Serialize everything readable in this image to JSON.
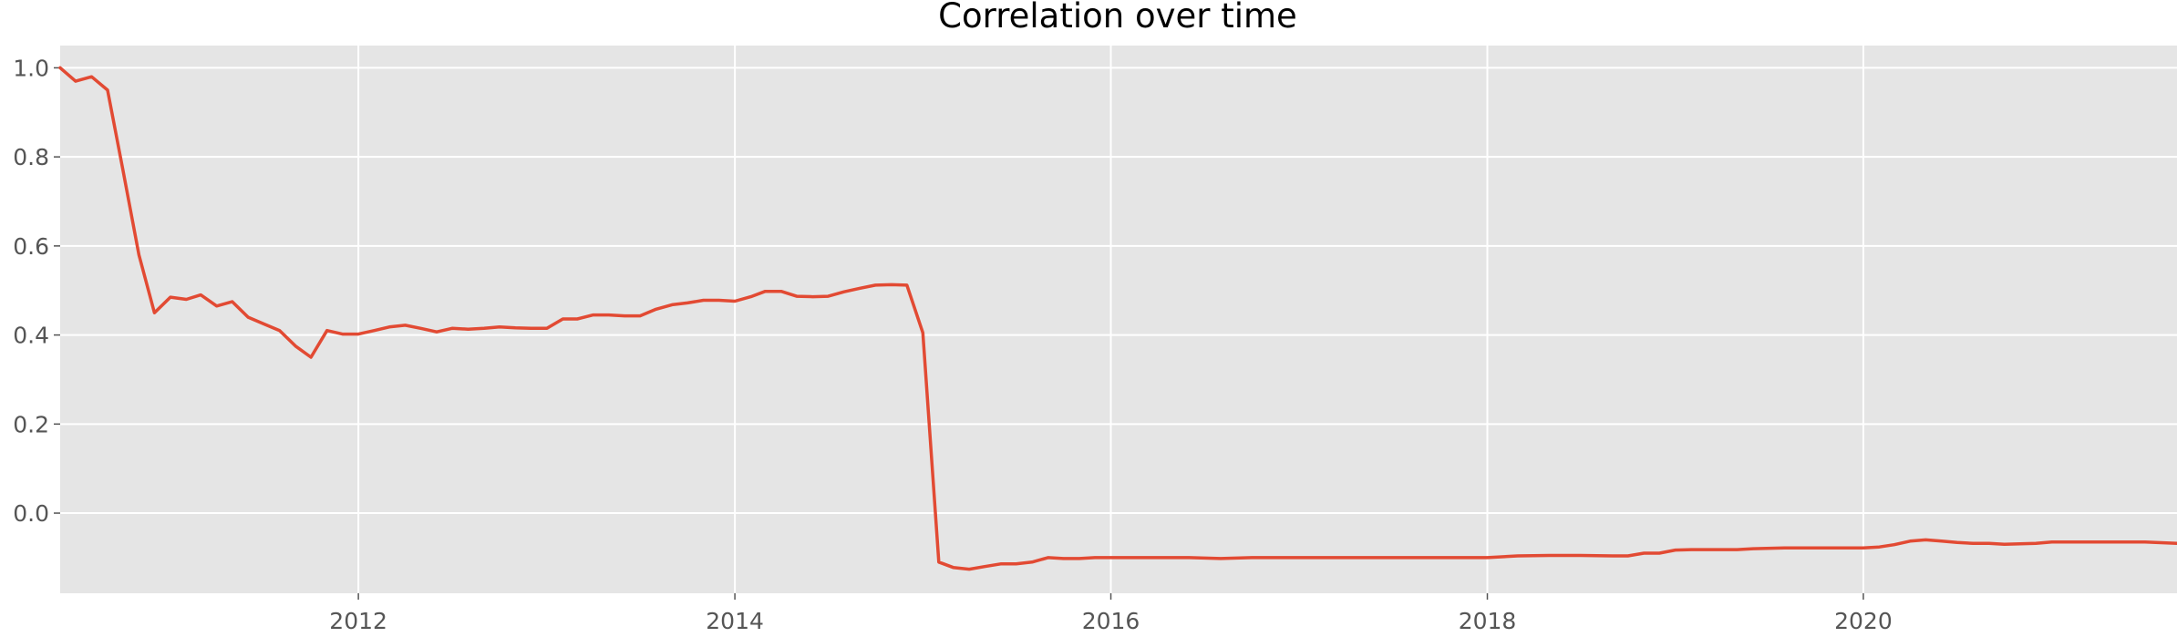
{
  "chart_data": {
    "type": "line",
    "title": "Correlation over time",
    "xlabel": "",
    "ylabel": "",
    "xlim": [
      "2010-06-01",
      "2021-09-01"
    ],
    "ylim": [
      -0.18,
      1.05
    ],
    "xticks": [
      "2012",
      "2014",
      "2016",
      "2018",
      "2020"
    ],
    "yticks": [
      "0.0",
      "0.2",
      "0.4",
      "0.6",
      "0.8",
      "1.0"
    ],
    "grid": true,
    "legend": "none",
    "colors": {
      "line": "#e24a33",
      "plot_background": "#e5e5e5",
      "grid": "#ffffff"
    },
    "series": [
      {
        "dates": [
          "2010-06-01",
          "2010-07-01",
          "2010-08-01",
          "2010-09-01",
          "2010-10-01",
          "2010-11-01",
          "2010-12-01",
          "2011-01-01",
          "2011-02-01",
          "2011-03-01",
          "2011-04-01",
          "2011-05-01",
          "2011-06-01",
          "2011-07-01",
          "2011-08-01",
          "2011-09-01",
          "2011-10-01",
          "2011-11-01",
          "2011-12-01",
          "2012-01-01",
          "2012-02-01",
          "2012-03-01",
          "2012-04-01",
          "2012-05-01",
          "2012-06-01",
          "2012-07-01",
          "2012-08-01",
          "2012-09-01",
          "2012-10-01",
          "2012-11-01",
          "2012-12-01",
          "2013-01-01",
          "2013-02-01",
          "2013-03-01",
          "2013-04-01",
          "2013-05-01",
          "2013-06-01",
          "2013-07-01",
          "2013-08-01",
          "2013-09-01",
          "2013-10-01",
          "2013-11-01",
          "2013-12-01",
          "2014-01-01",
          "2014-02-01",
          "2014-03-01",
          "2014-04-01",
          "2014-05-01",
          "2014-06-01",
          "2014-07-01",
          "2014-08-01",
          "2014-09-01",
          "2014-10-01",
          "2014-11-01",
          "2014-12-01",
          "2015-01-01",
          "2015-02-01",
          "2015-03-01",
          "2015-04-01",
          "2015-05-01",
          "2015-06-01",
          "2015-07-01",
          "2015-08-01",
          "2015-09-01",
          "2015-10-01",
          "2015-11-01",
          "2015-12-01",
          "2016-02-01",
          "2016-04-01",
          "2016-06-01",
          "2016-08-01",
          "2016-10-01",
          "2016-12-01",
          "2017-02-01",
          "2017-04-01",
          "2017-06-01",
          "2017-08-01",
          "2017-10-01",
          "2017-12-01",
          "2018-01-01",
          "2018-03-01",
          "2018-05-01",
          "2018-07-01",
          "2018-09-01",
          "2018-10-01",
          "2018-11-01",
          "2018-12-01",
          "2019-01-01",
          "2019-02-01",
          "2019-04-01",
          "2019-05-01",
          "2019-06-01",
          "2019-08-01",
          "2019-10-01",
          "2019-12-01",
          "2020-01-01",
          "2020-02-01",
          "2020-03-01",
          "2020-04-01",
          "2020-05-01",
          "2020-06-01",
          "2020-07-01",
          "2020-08-01",
          "2020-09-01",
          "2020-10-01",
          "2020-12-01",
          "2021-01-01",
          "2021-03-01",
          "2021-05-01",
          "2021-07-01",
          "2021-09-01"
        ],
        "values": [
          1.0,
          0.97,
          0.98,
          0.95,
          0.77,
          0.58,
          0.45,
          0.485,
          0.48,
          0.49,
          0.465,
          0.475,
          0.44,
          0.425,
          0.41,
          0.375,
          0.35,
          0.41,
          0.402,
          0.402,
          0.41,
          0.418,
          0.422,
          0.415,
          0.407,
          0.415,
          0.413,
          0.415,
          0.418,
          0.416,
          0.415,
          0.415,
          0.436,
          0.436,
          0.445,
          0.445,
          0.443,
          0.443,
          0.458,
          0.468,
          0.472,
          0.478,
          0.478,
          0.476,
          0.486,
          0.498,
          0.498,
          0.487,
          0.486,
          0.487,
          0.497,
          0.505,
          0.512,
          0.513,
          0.512,
          0.405,
          -0.11,
          -0.122,
          -0.126,
          -0.12,
          -0.114,
          -0.114,
          -0.11,
          -0.1,
          -0.102,
          -0.102,
          -0.1,
          -0.1,
          -0.1,
          -0.1,
          -0.102,
          -0.1,
          -0.1,
          -0.1,
          -0.1,
          -0.1,
          -0.1,
          -0.1,
          -0.1,
          -0.1,
          -0.096,
          -0.095,
          -0.095,
          -0.096,
          -0.096,
          -0.09,
          -0.09,
          -0.083,
          -0.082,
          -0.082,
          -0.082,
          -0.08,
          -0.078,
          -0.078,
          -0.078,
          -0.078,
          -0.076,
          -0.071,
          -0.063,
          -0.06,
          -0.063,
          -0.066,
          -0.068,
          -0.068,
          -0.07,
          -0.068,
          -0.065,
          -0.065,
          -0.065,
          -0.065,
          -0.068
        ]
      }
    ]
  }
}
